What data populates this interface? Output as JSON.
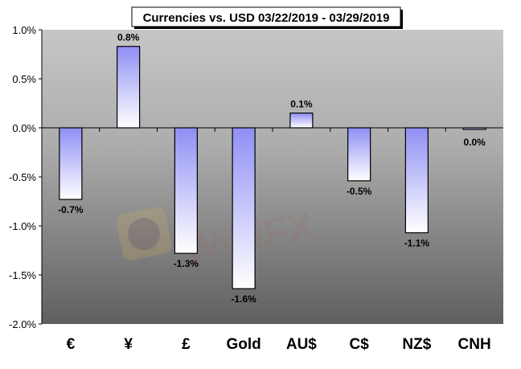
{
  "chart_data": {
    "type": "bar",
    "title": "Currencies vs. USD 03/22/2019 - 03/29/2019",
    "categories": [
      "€",
      "¥",
      "£",
      "Gold",
      "AU$",
      "C$",
      "NZ$",
      "CNH"
    ],
    "values": [
      -0.73,
      0.83,
      -1.28,
      -1.64,
      0.15,
      -0.54,
      -1.07,
      -0.01
    ],
    "data_labels": [
      "-0.7%",
      "0.8%",
      "-1.3%",
      "-1.6%",
      "0.1%",
      "-0.5%",
      "-1.1%",
      "0.0%"
    ],
    "ylim": [
      -2.0,
      1.0
    ],
    "yticks": [
      1.0,
      0.5,
      0.0,
      -0.5,
      -1.0,
      -1.5,
      -2.0
    ],
    "ytick_labels": [
      "1.0%",
      "0.5%",
      "0.0%",
      "-0.5%",
      "-1.0%",
      "-1.5%",
      "-2.0%"
    ],
    "xlabel": "",
    "ylabel": "",
    "grid": false,
    "bar_color": "#8f8ff5",
    "watermark": "WikiFX"
  }
}
